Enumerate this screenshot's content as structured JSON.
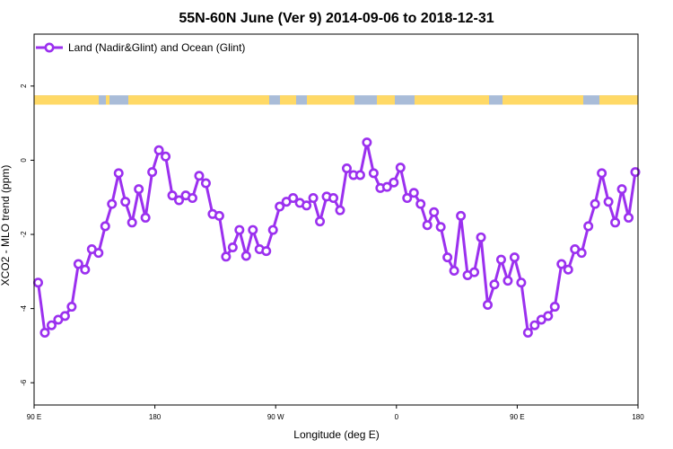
{
  "chart_data": {
    "type": "line",
    "title": "55N-60N June (Ver 9)   2014-09-06 to 2018-12-31",
    "xlabel": "Longitude (deg E)",
    "ylabel": "XCO2 - MLO trend (ppm)",
    "xlim": [
      90,
      540
    ],
    "ylim": [
      -6.6,
      3.4
    ],
    "xticks": [
      {
        "value": 90,
        "label": "90 E"
      },
      {
        "value": 180,
        "label": "180"
      },
      {
        "value": 270,
        "label": "90 W"
      },
      {
        "value": 360,
        "label": "0"
      },
      {
        "value": 450,
        "label": "90 E"
      },
      {
        "value": 540,
        "label": "180"
      }
    ],
    "yticks": [
      {
        "value": 2,
        "label": "2"
      },
      {
        "value": 0,
        "label": "0"
      },
      {
        "value": -2,
        "label": "-2"
      },
      {
        "value": -4,
        "label": "-4"
      },
      {
        "value": -6,
        "label": "-6"
      }
    ],
    "grid": false,
    "legend_position": "top-left",
    "land_ocean_band": {
      "y_range": [
        1.5,
        1.75
      ],
      "land_color": "#ffd966",
      "ocean_color": "#a9bcd8"
    },
    "series": [
      {
        "name": "Land (Nadir&Glint) and Ocean (Glint)",
        "color": "#9b30ef",
        "x": [
          93,
          98,
          103,
          108,
          113,
          118,
          123,
          128,
          133,
          138,
          143,
          148,
          153,
          158,
          163,
          168,
          173,
          178,
          183,
          188,
          193,
          198,
          203,
          208,
          213,
          218,
          223,
          228,
          233,
          238,
          243,
          248,
          253,
          258,
          263,
          268,
          273,
          278,
          283,
          288,
          293,
          298,
          303,
          308,
          313,
          318,
          323,
          328,
          333,
          338,
          343,
          348,
          353,
          358,
          363,
          368,
          373,
          378,
          383,
          388,
          393,
          398,
          403,
          408,
          413,
          418,
          423,
          428,
          433,
          438,
          443,
          448,
          453,
          458,
          463,
          468,
          473,
          478,
          483,
          488,
          493,
          498,
          503,
          508,
          513,
          518,
          523,
          528,
          533,
          538
        ],
        "values": [
          -3.3,
          -4.65,
          -4.45,
          -4.3,
          -4.2,
          -3.95,
          -2.8,
          -2.95,
          -2.4,
          -2.5,
          -1.78,
          -1.18,
          -0.35,
          -1.12,
          -1.68,
          -0.78,
          -1.55,
          -0.32,
          0.27,
          0.1,
          -0.95,
          -1.08,
          -0.95,
          -1.02,
          -0.42,
          -0.62,
          -1.45,
          -1.5,
          -2.6,
          -2.35,
          -1.88,
          -2.58,
          -1.88,
          -2.4,
          -2.45,
          -1.88,
          -1.25,
          -1.12,
          -1.02,
          -1.15,
          -1.22,
          -1.02,
          -1.65,
          -0.98,
          -1.02,
          -1.35,
          -0.22,
          -0.4,
          -0.4,
          0.48,
          -0.35,
          -0.75,
          -0.72,
          -0.6,
          -0.2,
          -1.02,
          -0.88,
          -1.18,
          -1.75,
          -1.4,
          -1.8,
          -2.62,
          -2.98,
          -1.5,
          -3.1,
          -3.02,
          -2.08,
          -3.9,
          -3.35,
          -2.68,
          -3.25,
          -2.62,
          -3.3,
          -4.65,
          -4.45,
          -4.3,
          -4.2,
          -3.95,
          -2.8,
          -2.95,
          -2.4,
          -2.5,
          -1.78,
          -1.18,
          -0.35,
          -1.12,
          -1.68,
          -0.78,
          -1.55,
          -0.32
        ]
      }
    ]
  }
}
